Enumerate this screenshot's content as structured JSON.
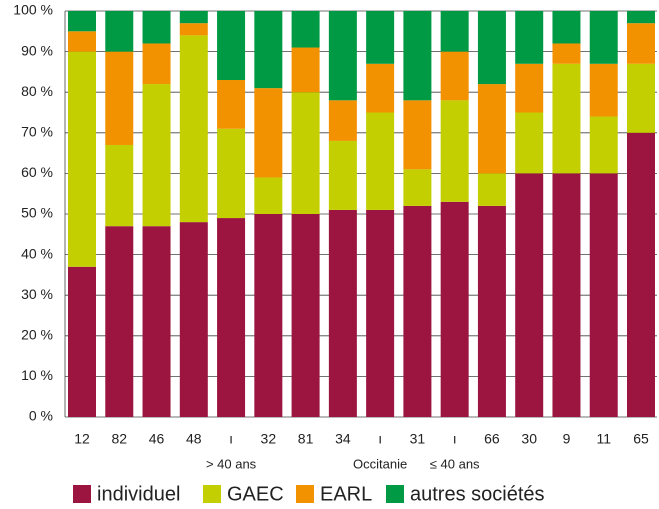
{
  "chart_data": {
    "type": "stacked_bar",
    "categories": [
      "12",
      "82",
      "46",
      "48",
      "ı",
      "32",
      "81",
      "34",
      "ı",
      "31",
      "ı",
      "66",
      "30",
      "9",
      "11",
      "65"
    ],
    "category_groups": [
      null,
      null,
      null,
      null,
      "> 40 ans",
      null,
      null,
      null,
      "Occitanie",
      null,
      "≤ 40 ans",
      null,
      null,
      null,
      null,
      null
    ],
    "series": [
      {
        "name": "individuel",
        "color": "#9b1540",
        "values": [
          37,
          47,
          47,
          48,
          49,
          50,
          50,
          51,
          51,
          52,
          53,
          52,
          60,
          60,
          60,
          70
        ]
      },
      {
        "name": "GAEC",
        "color": "#c3cf00",
        "values": [
          53,
          20,
          35,
          46,
          22,
          9,
          30,
          17,
          24,
          9,
          25,
          8,
          15,
          27,
          14,
          17
        ]
      },
      {
        "name": "EARL",
        "color": "#f39200",
        "values": [
          5,
          23,
          10,
          3,
          12,
          22,
          11,
          10,
          12,
          17,
          12,
          22,
          12,
          5,
          13,
          10
        ]
      },
      {
        "name": "autres sociétés",
        "color": "#009a44",
        "values": [
          5,
          10,
          8,
          3,
          17,
          19,
          9,
          22,
          13,
          22,
          10,
          18,
          13,
          8,
          13,
          3
        ]
      }
    ],
    "ylim": [
      0,
      100
    ],
    "yticks": [
      {
        "value": 0,
        "label": "0 %"
      },
      {
        "value": 10,
        "label": "10 %"
      },
      {
        "value": 20,
        "label": "20 %"
      },
      {
        "value": 30,
        "label": "30 %"
      },
      {
        "value": 40,
        "label": "40 %"
      },
      {
        "value": 50,
        "label": "50 %"
      },
      {
        "value": 60,
        "label": "60 %"
      },
      {
        "value": 70,
        "label": "70 %"
      },
      {
        "value": 80,
        "label": "80 %"
      },
      {
        "value": 90,
        "label": "90 %"
      },
      {
        "value": {
          "value": 100,
          "label": "100 %"
        },
        "label": "100 %"
      }
    ],
    "grid": true,
    "legend": "bottom"
  }
}
